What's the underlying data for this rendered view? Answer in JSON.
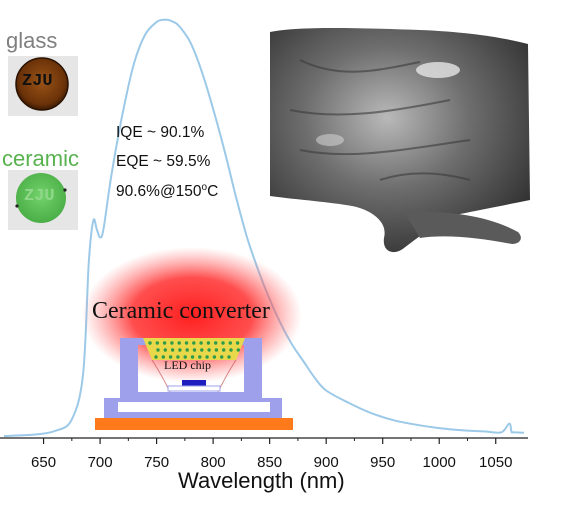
{
  "chart_data": {
    "type": "line",
    "title": "",
    "xlabel": "Wavelength (nm)",
    "ylabel": "",
    "xlim": [
      615,
      1075
    ],
    "ylim": [
      0,
      1.0
    ],
    "xticks": [
      650,
      700,
      750,
      800,
      850,
      900,
      950,
      1000,
      1050
    ],
    "series": [
      {
        "name": "",
        "color": "#9cc9e8",
        "x": [
          615,
          640,
          660,
          675,
          685,
          690,
          694,
          697,
          700,
          703,
          710,
          720,
          730,
          740,
          750,
          755,
          760,
          765,
          770,
          780,
          790,
          800,
          810,
          820,
          830,
          840,
          850,
          860,
          870,
          880,
          890,
          900,
          920,
          940,
          960,
          980,
          1000,
          1020,
          1040,
          1055,
          1062,
          1064,
          1066,
          1075
        ],
        "y": [
          0.0,
          0.003,
          0.012,
          0.04,
          0.15,
          0.42,
          0.52,
          0.5,
          0.48,
          0.5,
          0.63,
          0.78,
          0.9,
          0.97,
          1.0,
          1.005,
          1.005,
          1.0,
          0.99,
          0.95,
          0.88,
          0.79,
          0.69,
          0.58,
          0.48,
          0.4,
          0.33,
          0.27,
          0.22,
          0.18,
          0.14,
          0.11,
          0.08,
          0.055,
          0.038,
          0.027,
          0.019,
          0.014,
          0.011,
          0.009,
          0.03,
          0.01,
          0.009,
          0.008
        ]
      }
    ]
  },
  "labels": {
    "glass": "glass",
    "glass_disc_text": "ZJU",
    "ceramic": "ceramic",
    "ceramic_disc_text": "ZJU",
    "iqe": "IQE ~ 90.1%",
    "eqe": "EQE ~ 59.5%",
    "stability_prefix": "90.6%@150",
    "stability_unit": "o",
    "stability_suffix": "C",
    "converter": "Ceramic converter",
    "chip": "LED chip"
  },
  "colors": {
    "curve": "#9cc9e8",
    "glow": "#ff2a2a",
    "phosphor": "#e8d84a",
    "phosphor_dots": "#2e9a4a",
    "housing": "#9fa0ec",
    "base": "#ff7a1a",
    "chip": "#1f1fbf",
    "glass_disc": "#7a3d10",
    "ceramic_disc": "#5cc158"
  }
}
